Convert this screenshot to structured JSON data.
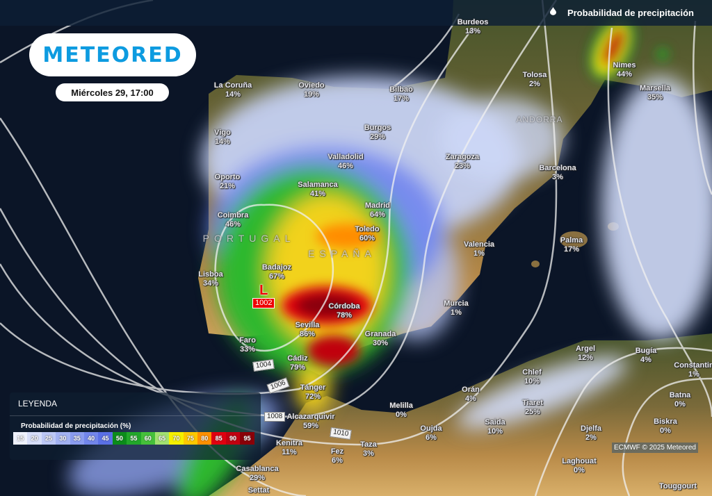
{
  "header": {
    "title": "Probabilidad de precipitación",
    "icon": "water-drop-icon"
  },
  "brand": {
    "logo_text": "METEORED",
    "color": "#0d9be0"
  },
  "date_label": "Miércoles 29, 17:00",
  "regions": [
    "PORTUGAL",
    "ESPAÑA",
    "ANDORRA"
  ],
  "cities": [
    {
      "name": "Burdeos",
      "value": "13%"
    },
    {
      "name": "La Coruña",
      "value": "14%"
    },
    {
      "name": "Oviedo",
      "value": "19%"
    },
    {
      "name": "Bilbao",
      "value": "17%"
    },
    {
      "name": "Tolosa",
      "value": "2%"
    },
    {
      "name": "Nimes",
      "value": "44%"
    },
    {
      "name": "Marsella",
      "value": "35%"
    },
    {
      "name": "Vigo",
      "value": "14%"
    },
    {
      "name": "Burgos",
      "value": "29%"
    },
    {
      "name": "Valladolid",
      "value": "46%"
    },
    {
      "name": "Zaragoza",
      "value": "23%"
    },
    {
      "name": "Barcelona",
      "value": "3%"
    },
    {
      "name": "Oporto",
      "value": "21%"
    },
    {
      "name": "Salamanca",
      "value": "41%"
    },
    {
      "name": "Madrid",
      "value": "64%"
    },
    {
      "name": "Coimbra",
      "value": "46%"
    },
    {
      "name": "Toledo",
      "value": "60%"
    },
    {
      "name": "Valencia",
      "value": "1%"
    },
    {
      "name": "Palma",
      "value": "17%"
    },
    {
      "name": "Badajoz",
      "value": "67%"
    },
    {
      "name": "Lisboa",
      "value": "34%"
    },
    {
      "name": "Córdoba",
      "value": "78%"
    },
    {
      "name": "Murcia",
      "value": "1%"
    },
    {
      "name": "Sevilla",
      "value": "86%"
    },
    {
      "name": "Granada",
      "value": "30%"
    },
    {
      "name": "Faro",
      "value": "33%"
    },
    {
      "name": "Argel",
      "value": "12%"
    },
    {
      "name": "Bugía",
      "value": "4%"
    },
    {
      "name": "Cádiz",
      "value": "79%"
    },
    {
      "name": "Constantin",
      "value": "1%"
    },
    {
      "name": "Chlef",
      "value": "10%"
    },
    {
      "name": "Tánger",
      "value": "72%"
    },
    {
      "name": "Orán",
      "value": "4%"
    },
    {
      "name": "Batna",
      "value": "0%"
    },
    {
      "name": "Tiaret",
      "value": "25%"
    },
    {
      "name": "Melilla",
      "value": "0%"
    },
    {
      "name": "Alcazarquivir",
      "value": "59%"
    },
    {
      "name": "Saida",
      "value": "10%"
    },
    {
      "name": "Biskra",
      "value": "0%"
    },
    {
      "name": "Oujda",
      "value": "6%"
    },
    {
      "name": "Djelfa",
      "value": "2%"
    },
    {
      "name": "Kenitra",
      "value": "11%"
    },
    {
      "name": "Taza",
      "value": "3%"
    },
    {
      "name": "Fez",
      "value": "6%"
    },
    {
      "name": "Laghouat",
      "value": "0%"
    },
    {
      "name": "Casablanca",
      "value": "29%"
    },
    {
      "name": "Settat",
      "value": ""
    },
    {
      "name": "Touggourt",
      "value": ""
    }
  ],
  "pressure_low": {
    "symbol": "L",
    "value": "1002"
  },
  "isobars": [
    "1004",
    "1006",
    "1008",
    "1010"
  ],
  "legend": {
    "heading": "LEYENDA",
    "title": "Probabilidad de precipitación (%)",
    "bins": [
      {
        "label": "15",
        "color": "#eef2fd"
      },
      {
        "label": "20",
        "color": "#d6def9"
      },
      {
        "label": "25",
        "color": "#bcc8f6"
      },
      {
        "label": "30",
        "color": "#a2b2f2"
      },
      {
        "label": "35",
        "color": "#8a9cef"
      },
      {
        "label": "40",
        "color": "#7286eb"
      },
      {
        "label": "45",
        "color": "#5a70e6"
      },
      {
        "label": "50",
        "color": "#0b8c1a"
      },
      {
        "label": "55",
        "color": "#22a82a"
      },
      {
        "label": "60",
        "color": "#45c03a"
      },
      {
        "label": "65",
        "color": "#a2e070"
      },
      {
        "label": "70",
        "color": "#f5f000"
      },
      {
        "label": "75",
        "color": "#ffc800"
      },
      {
        "label": "80",
        "color": "#ff9000"
      },
      {
        "label": "85",
        "color": "#e00010"
      },
      {
        "label": "90",
        "color": "#c00010"
      },
      {
        "label": "95",
        "color": "#8a0008"
      }
    ]
  },
  "copyright": "ECMWF © 2025 Meteored"
}
